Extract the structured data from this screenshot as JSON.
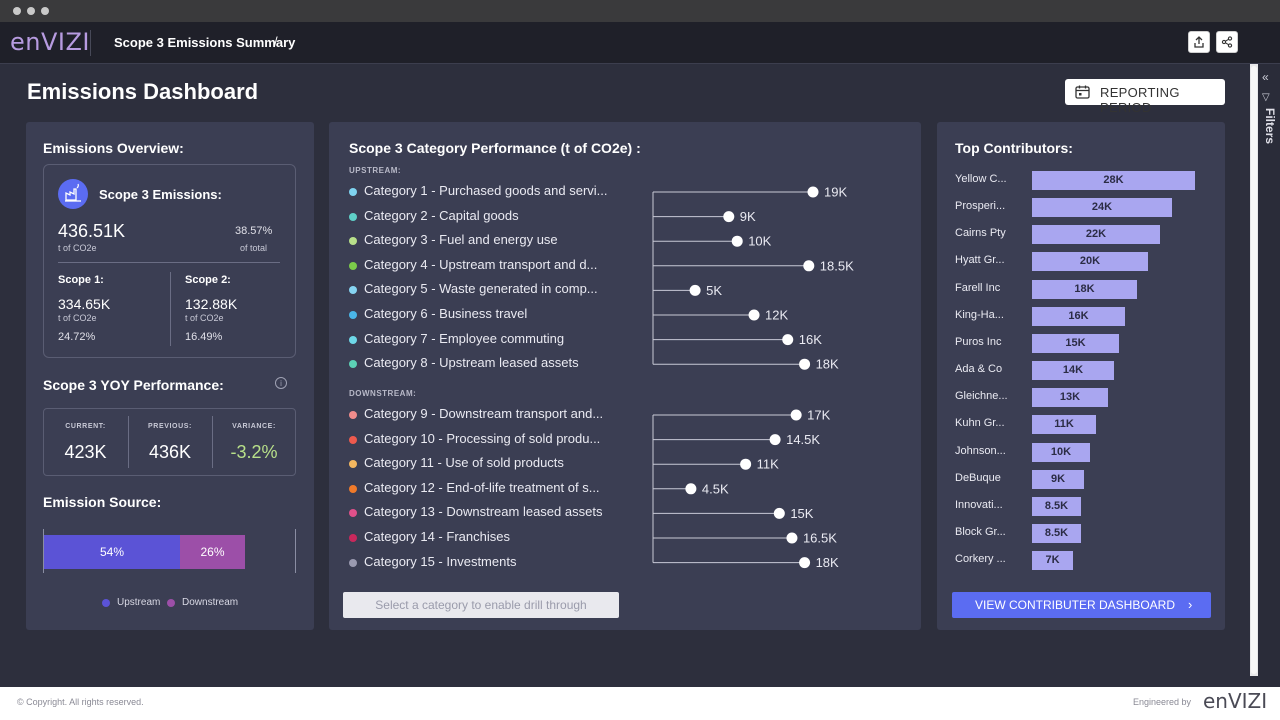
{
  "app": {
    "logo": "enVIZI",
    "breadcrumb": "Scope 3 Emissions Summary",
    "breadcrumb_sep": "/"
  },
  "page": {
    "title": "Emissions Dashboard",
    "period_button": "REPORTING PERIOD",
    "filters_label": "Filters"
  },
  "overview": {
    "title": "Emissions Overview:",
    "scope3_label": "Scope 3 Emissions:",
    "scope3_value": "436.51K",
    "scope3_unit": "t of CO2e",
    "scope3_pct": "38.57%",
    "scope3_pct_label": "of total",
    "scope1": {
      "label": "Scope 1:",
      "value": "334.65K",
      "unit": "t of CO2e",
      "pct": "24.72%"
    },
    "scope2": {
      "label": "Scope 2:",
      "value": "132.88K",
      "unit": "t of CO2e",
      "pct": "16.49%"
    }
  },
  "yoy": {
    "title": "Scope 3 YOY Performance:",
    "current_label": "CURRENT:",
    "current_value": "423K",
    "previous_label": "PREVIOUS:",
    "previous_value": "436K",
    "variance_label": "VARIANCE:",
    "variance_value": "-3.2%"
  },
  "source": {
    "title": "Emission Source:",
    "upstream_pct": "54%",
    "downstream_pct": "26%",
    "upstream_value": 54,
    "downstream_value": 26,
    "legend_upstream": "Upstream",
    "legend_downstream": "Downstream"
  },
  "category": {
    "title": "Scope 3 Category Performance (t of CO2e) :",
    "upstream_label": "UPSTREAM:",
    "downstream_label": "DOWNSTREAM:",
    "drill_button": "Select a category to enable drill through"
  },
  "chart_data": [
    {
      "type": "lollipop",
      "title": "Scope 3 Category Performance (t of CO2e) :",
      "groups": [
        "UPSTREAM:",
        "DOWNSTREAM:"
      ],
      "categories": [
        "Category 1 - Purchased goods and servi...",
        "Category 2 - Capital goods",
        "Category 3 - Fuel and energy use",
        "Category 4 - Upstream transport and d...",
        "Category 5 - Waste generated in comp...",
        "Category 6 - Business travel",
        "Category 7 - Employee commuting",
        "Category 8 - Upstream leased assets",
        "Category 9 - Downstream transport and...",
        "Category 10 - Processing of sold produ...",
        "Category 11 - Use of sold products",
        "Category 12 - End-of-life treatment of s...",
        "Category 13 - Downstream leased assets",
        "Category 14 - Franchises",
        "Category 15 - Investments"
      ],
      "values": [
        19000,
        9000,
        10000,
        18500,
        5000,
        12000,
        16000,
        18000,
        17000,
        14500,
        11000,
        4500,
        15000,
        16500,
        18000
      ],
      "value_labels": [
        "19K",
        "9K",
        "10K",
        "18.5K",
        "5K",
        "12K",
        "16K",
        "18K",
        "17K",
        "14.5K",
        "11K",
        "4.5K",
        "15K",
        "16.5K",
        "18K"
      ],
      "colors": [
        "#7fd3f0",
        "#5fd0c8",
        "#b8e08a",
        "#7ccc4a",
        "#86d4f2",
        "#4ab6e8",
        "#6ed8e8",
        "#5cd2b6",
        "#f08c8c",
        "#ee5a4e",
        "#f4b860",
        "#f07a2a",
        "#e0508a",
        "#c8285c",
        "#9a9ab0"
      ],
      "xlim": [
        0,
        19000
      ]
    },
    {
      "type": "bar",
      "title": "Top Contributors:",
      "categories": [
        "Yellow C...",
        "Prosperi...",
        "Cairns Pty",
        "Hyatt Gr...",
        "Farell Inc",
        "King-Ha...",
        "Puros Inc",
        "Ada & Co",
        "Gleichne...",
        "Kuhn Gr...",
        "Johnson...",
        "DeBuque",
        "Innovati...",
        "Block Gr...",
        "Corkery ..."
      ],
      "values": [
        28000,
        24000,
        22000,
        20000,
        18000,
        16000,
        15000,
        14000,
        13000,
        11000,
        10000,
        9000,
        8500,
        8500,
        7000
      ],
      "value_labels": [
        "28K",
        "24K",
        "22K",
        "20K",
        "18K",
        "16K",
        "15K",
        "14K",
        "13K",
        "11K",
        "10K",
        "9K",
        "8.5K",
        "8.5K",
        "7K"
      ],
      "xlim": [
        0,
        28000
      ]
    }
  ],
  "top": {
    "title": "Top Contributors:",
    "button": "VIEW CONTRIBUTER DASHBOARD"
  },
  "footer": {
    "copyright": "© Copyright. All rights reserved.",
    "engineered": "Engineered by",
    "logo": "enVIZI"
  },
  "colors": {
    "upstream": "#5b53d6",
    "downstream": "#9c4fa8",
    "accent_button": "#5b6cf2",
    "variance": "#b8e08a"
  }
}
